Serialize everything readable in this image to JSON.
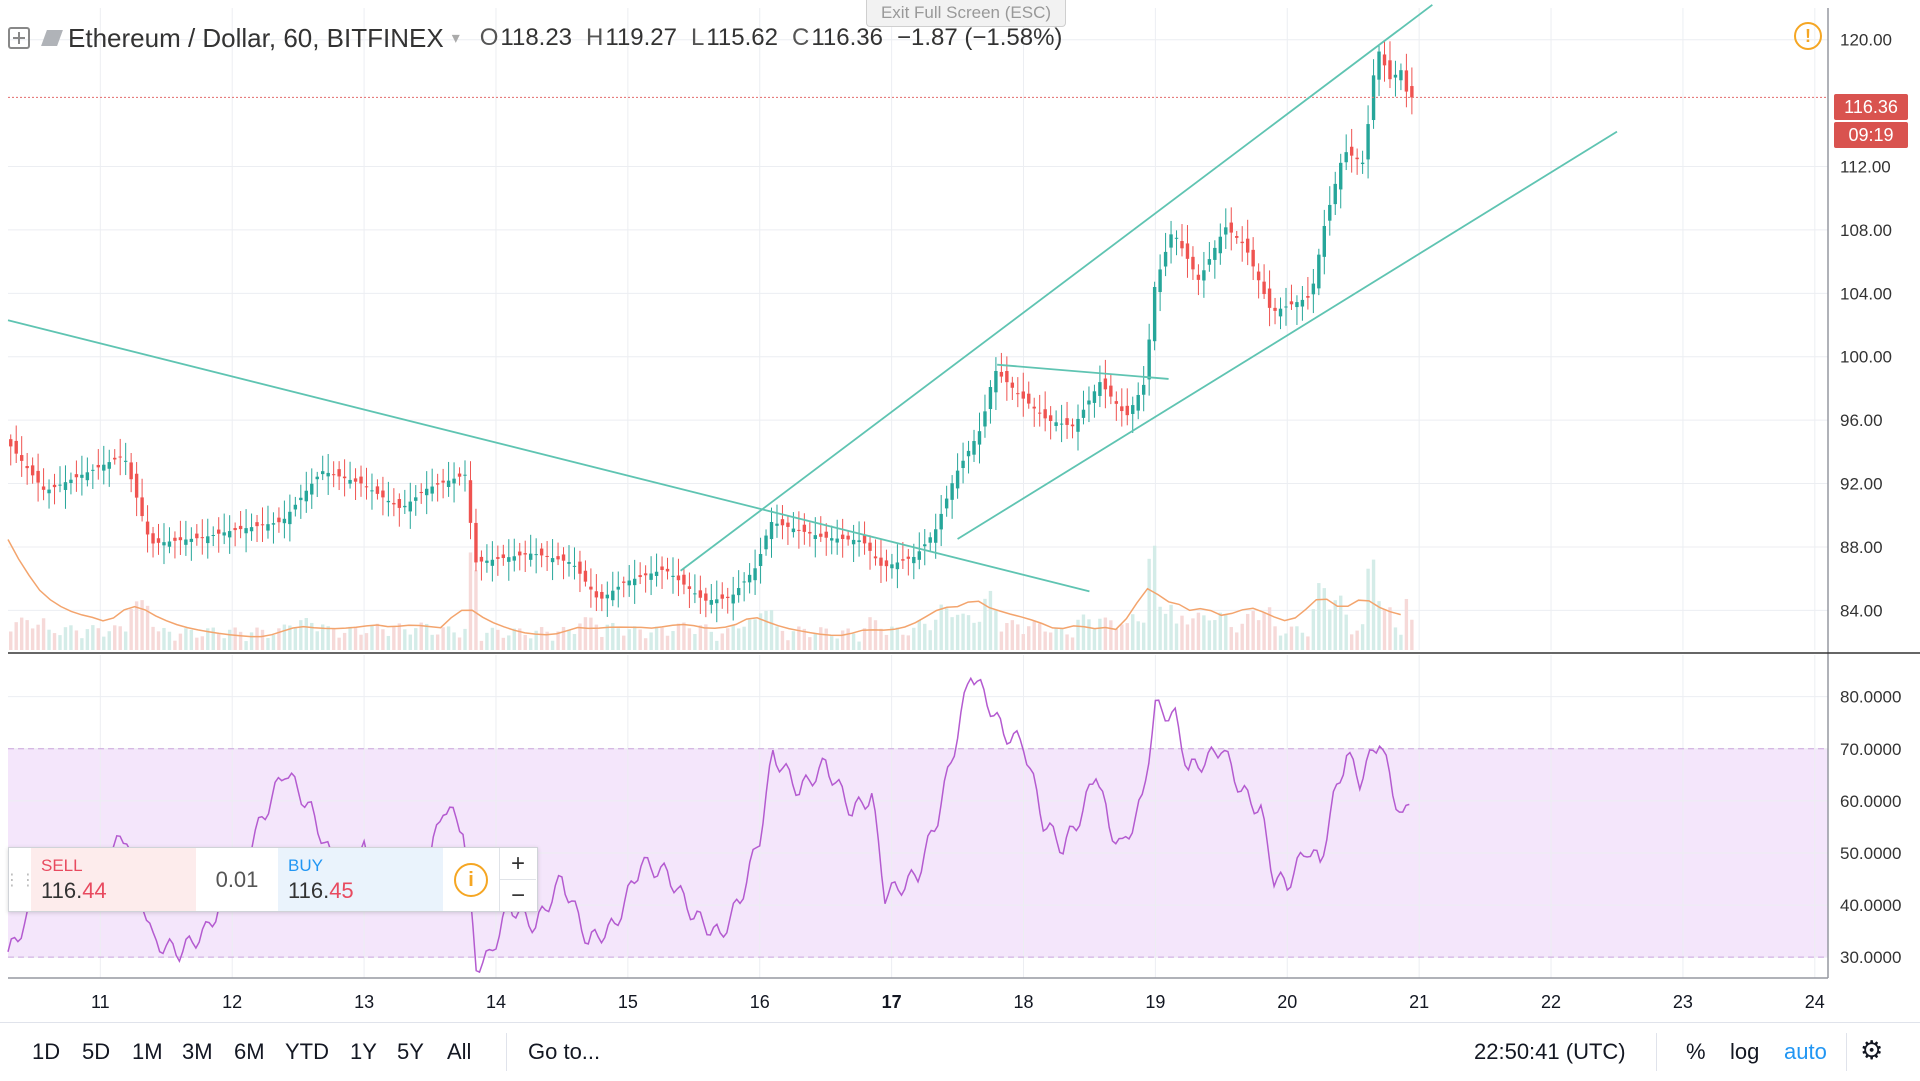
{
  "header": {
    "symbol": "Ethereum / Dollar, 60, BITFINEX",
    "open_label": "O",
    "open": "118.23",
    "high_label": "H",
    "high": "119.27",
    "low_label": "L",
    "low": "115.62",
    "close_label": "C",
    "close": "116.36",
    "change": "−1.87 (−1.58%)"
  },
  "exit_fullscreen": "Exit Full Screen (ESC)",
  "warning_icon": "!",
  "price_axis": {
    "current_price": "116.36",
    "countdown": "09:19"
  },
  "trade_panel": {
    "sell_label": "SELL",
    "sell_price_main": "116.",
    "sell_price_hi": "44",
    "spread": "0.01",
    "buy_label": "BUY",
    "buy_price_main": "116.",
    "buy_price_hi": "45",
    "info_icon": "i",
    "plus": "+",
    "minus": "−"
  },
  "bottom_bar": {
    "ranges": [
      "1D",
      "5D",
      "1M",
      "3M",
      "6M",
      "YTD",
      "1Y",
      "5Y",
      "All"
    ],
    "goto": "Go to...",
    "clock": "22:50:41 (UTC)",
    "percent": "%",
    "log": "log",
    "auto": "auto",
    "settings_icon": "gear-icon"
  },
  "colors": {
    "up": "#26a69a",
    "down": "#ef5350",
    "trendline": "#5fc4b2",
    "rsi_line": "#b45bd0",
    "rsi_band": "#f4e6fb",
    "ma_line": "#f3a46d",
    "price_tag": "#d9534f",
    "accent": "#2196f3"
  },
  "chart_data": {
    "type": "candlestick",
    "x_ticks": [
      "11",
      "12",
      "13",
      "14",
      "15",
      "16",
      "17",
      "18",
      "19",
      "20",
      "21",
      "22",
      "23",
      "24"
    ],
    "x_tick_bold": "17",
    "price_axis_ticks": [
      "120.00",
      "112.00",
      "108.00",
      "104.00",
      "100.00",
      "96.00",
      "92.00",
      "88.00",
      "84.00"
    ],
    "ylim": [
      81.5,
      122
    ],
    "rsi_ticks": [
      "80.0000",
      "70.0000",
      "60.0000",
      "50.0000",
      "40.0000",
      "30.0000"
    ],
    "rsi_ylim": [
      26,
      88
    ],
    "rsi_band": [
      30,
      70
    ],
    "day_range": [
      10.3,
      24.1
    ],
    "price_series": [
      [
        10.3,
        94.8
      ],
      [
        10.6,
        91.5
      ],
      [
        11.0,
        93.0
      ],
      [
        11.2,
        93.8
      ],
      [
        11.4,
        88.2
      ],
      [
        11.8,
        88.6
      ],
      [
        12.0,
        89.0
      ],
      [
        12.4,
        89.6
      ],
      [
        12.7,
        92.8
      ],
      [
        13.0,
        92.0
      ],
      [
        13.3,
        90.4
      ],
      [
        13.5,
        91.7
      ],
      [
        13.8,
        92.6
      ],
      [
        13.85,
        87.0
      ],
      [
        14.3,
        87.6
      ],
      [
        14.6,
        87.0
      ],
      [
        14.8,
        84.6
      ],
      [
        15.0,
        85.8
      ],
      [
        15.3,
        86.6
      ],
      [
        15.6,
        84.6
      ],
      [
        15.8,
        84.8
      ],
      [
        16.0,
        86.8
      ],
      [
        16.1,
        89.6
      ],
      [
        16.5,
        88.6
      ],
      [
        16.8,
        88.4
      ],
      [
        16.95,
        86.7
      ],
      [
        17.2,
        87.4
      ],
      [
        17.35,
        89.0
      ],
      [
        17.5,
        92.5
      ],
      [
        17.7,
        95.5
      ],
      [
        17.8,
        99.2
      ],
      [
        18.0,
        97.5
      ],
      [
        18.2,
        96.0
      ],
      [
        18.4,
        95.6
      ],
      [
        18.6,
        98.4
      ],
      [
        18.8,
        96.2
      ],
      [
        18.95,
        98.5
      ],
      [
        19.0,
        104.0
      ],
      [
        19.15,
        108.0
      ],
      [
        19.35,
        104.8
      ],
      [
        19.55,
        108.2
      ],
      [
        19.7,
        107.0
      ],
      [
        19.9,
        102.8
      ],
      [
        20.2,
        103.8
      ],
      [
        20.3,
        108.2
      ],
      [
        20.45,
        113.0
      ],
      [
        20.6,
        112.2
      ],
      [
        20.7,
        119.6
      ],
      [
        20.8,
        117.5
      ],
      [
        20.9,
        118.2
      ],
      [
        20.93,
        116.36
      ]
    ],
    "rsi_series": [
      [
        10.3,
        30.5
      ],
      [
        10.6,
        45.0
      ],
      [
        10.8,
        43.0
      ],
      [
        11.2,
        53.5
      ],
      [
        11.4,
        33.0
      ],
      [
        11.6,
        31.0
      ],
      [
        11.8,
        35.0
      ],
      [
        12.0,
        44.0
      ],
      [
        12.2,
        55.0
      ],
      [
        12.4,
        66.0
      ],
      [
        12.6,
        58.0
      ],
      [
        12.8,
        46.0
      ],
      [
        13.0,
        50.5
      ],
      [
        13.1,
        43.0
      ],
      [
        13.3,
        47.0
      ],
      [
        13.5,
        49.0
      ],
      [
        13.6,
        59.0
      ],
      [
        13.75,
        55.0
      ],
      [
        13.85,
        28.5
      ],
      [
        13.95,
        30.0
      ],
      [
        14.1,
        40.0
      ],
      [
        14.3,
        36.0
      ],
      [
        14.5,
        45.0
      ],
      [
        14.7,
        33.0
      ],
      [
        14.9,
        36.0
      ],
      [
        15.1,
        48.0
      ],
      [
        15.3,
        46.0
      ],
      [
        15.5,
        38.0
      ],
      [
        15.7,
        34.0
      ],
      [
        15.85,
        41.0
      ],
      [
        16.0,
        53.0
      ],
      [
        16.1,
        69.0
      ],
      [
        16.3,
        62.0
      ],
      [
        16.5,
        67.0
      ],
      [
        16.7,
        58.0
      ],
      [
        16.85,
        61.0
      ],
      [
        16.95,
        42.0
      ],
      [
        17.1,
        44.0
      ],
      [
        17.2,
        46.0
      ],
      [
        17.35,
        57.0
      ],
      [
        17.5,
        73.0
      ],
      [
        17.6,
        85.0
      ],
      [
        17.75,
        78.0
      ],
      [
        17.85,
        73.0
      ],
      [
        18.0,
        71.0
      ],
      [
        18.15,
        56.0
      ],
      [
        18.3,
        51.0
      ],
      [
        18.45,
        58.0
      ],
      [
        18.55,
        66.0
      ],
      [
        18.65,
        55.0
      ],
      [
        18.75,
        51.0
      ],
      [
        18.9,
        60.0
      ],
      [
        19.0,
        78.0
      ],
      [
        19.15,
        76.0
      ],
      [
        19.25,
        66.0
      ],
      [
        19.4,
        68.0
      ],
      [
        19.5,
        70.5
      ],
      [
        19.65,
        62.0
      ],
      [
        19.8,
        58.0
      ],
      [
        19.9,
        45.0
      ],
      [
        20.0,
        44.0
      ],
      [
        20.15,
        51.0
      ],
      [
        20.25,
        48.0
      ],
      [
        20.35,
        60.0
      ],
      [
        20.45,
        69.0
      ],
      [
        20.55,
        64.0
      ],
      [
        20.7,
        72.0
      ],
      [
        20.8,
        62.0
      ],
      [
        20.88,
        56.0
      ],
      [
        20.93,
        60.0
      ]
    ],
    "trendlines": [
      {
        "name": "downtrend",
        "from": [
          10.3,
          102.3
        ],
        "to": [
          18.5,
          85.2
        ]
      },
      {
        "name": "channel-upper",
        "from": [
          15.4,
          86.5
        ],
        "to": [
          21.1,
          122.2
        ]
      },
      {
        "name": "channel-lower",
        "from": [
          17.5,
          88.5
        ],
        "to": [
          22.5,
          114.2
        ]
      },
      {
        "name": "flag",
        "from": [
          17.8,
          99.5
        ],
        "to": [
          19.1,
          98.6
        ]
      }
    ],
    "price_line": 116.36,
    "grid": true
  }
}
